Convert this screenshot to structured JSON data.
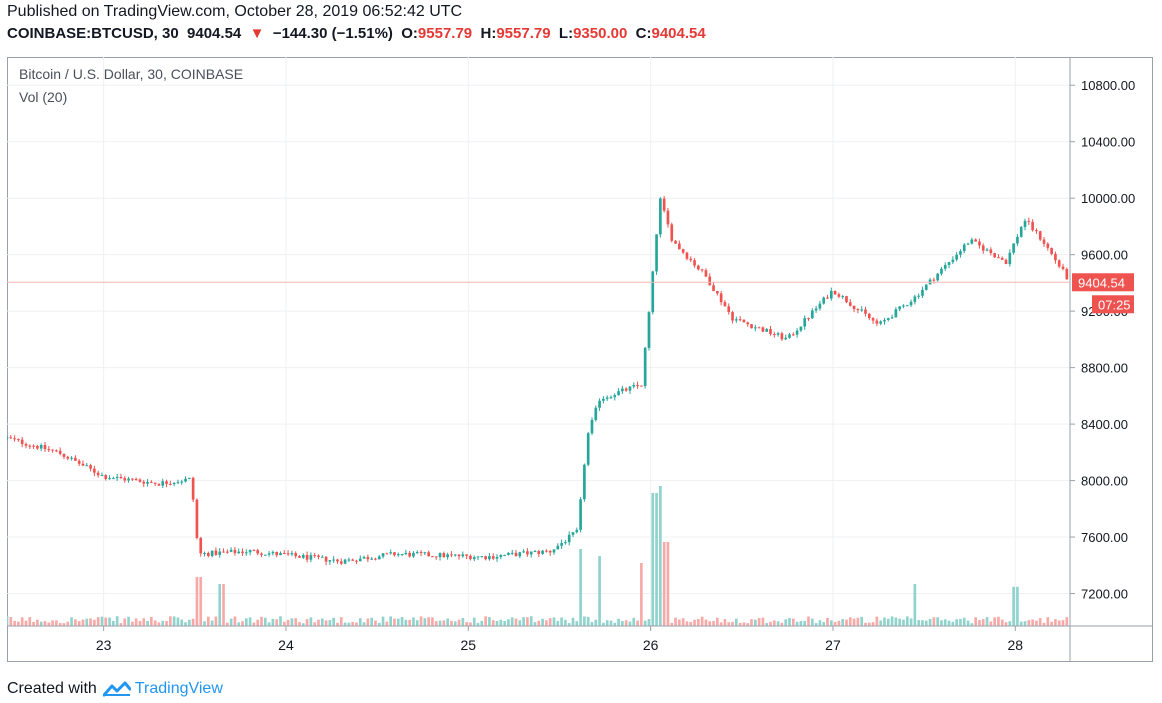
{
  "header": {
    "published": "Published on TradingView.com, October 28, 2019 06:52:42 UTC",
    "symbol": "COINBASE:BTCUSD, 30",
    "last": "9404.54",
    "arrow": "▼",
    "change": "−144.30 (−1.51%)",
    "o_label": "O:",
    "o_value": "9557.79",
    "h_label": "H:",
    "h_value": "9557.79",
    "l_label": "L:",
    "l_value": "9350.00",
    "c_label": "C:",
    "c_value": "9404.54"
  },
  "legend": {
    "title": "Bitcoin / U.S. Dollar, 30, COINBASE",
    "volume": "Vol (20)"
  },
  "price_label": "9404.54",
  "countdown_label": "07:25",
  "footer": {
    "created": "Created with",
    "brand": "TradingView",
    "logo": "tradingview-logo-icon"
  },
  "colors": {
    "up": "#26a69a",
    "down": "#ef5350",
    "vol_up": "#8fd3cc",
    "vol_down": "#f7a9a7",
    "grid": "#eef0f3",
    "axis": "#9aa0ab",
    "price_line": "#f5b8b3"
  },
  "chart_data": {
    "type": "candlestick",
    "title": "Bitcoin / U.S. Dollar, 30, COINBASE",
    "interval": "30",
    "xlabel": "",
    "ylabel": "",
    "x_ticks": [
      "23",
      "24",
      "25",
      "26",
      "27",
      "28"
    ],
    "x_tick_positions": [
      23,
      24,
      25,
      26,
      27,
      28
    ],
    "y_ticks": [
      7200,
      7600,
      8000,
      8400,
      8800,
      9200,
      9600,
      10000,
      10400,
      10800
    ],
    "y_tick_labels": [
      "7200.00",
      "7600.00",
      "8000.00",
      "8400.00",
      "8800.00",
      "9200.00",
      "9600.00",
      "10000.00",
      "10400.00",
      "10800.00"
    ],
    "ylim": [
      6970,
      11000
    ],
    "xlim": [
      22.47,
      28.3
    ],
    "last_price": 9404.54,
    "grid": true,
    "legend": "top-left",
    "key_points": [
      {
        "t": 22.47,
        "price": 8300
      },
      {
        "t": 22.75,
        "price": 8200
      },
      {
        "t": 23.0,
        "price": 8030
      },
      {
        "t": 23.3,
        "price": 7980
      },
      {
        "t": 23.48,
        "price": 8010
      },
      {
        "t": 23.52,
        "price": 7480
      },
      {
        "t": 23.8,
        "price": 7500
      },
      {
        "t": 24.3,
        "price": 7430
      },
      {
        "t": 24.6,
        "price": 7480
      },
      {
        "t": 25.1,
        "price": 7460
      },
      {
        "t": 25.45,
        "price": 7500
      },
      {
        "t": 25.6,
        "price": 7640
      },
      {
        "t": 25.65,
        "price": 8300
      },
      {
        "t": 25.72,
        "price": 8580
      },
      {
        "t": 25.95,
        "price": 8680
      },
      {
        "t": 26.0,
        "price": 9300
      },
      {
        "t": 26.05,
        "price": 10000
      },
      {
        "t": 26.12,
        "price": 9700
      },
      {
        "t": 26.3,
        "price": 9450
      },
      {
        "t": 26.45,
        "price": 9150
      },
      {
        "t": 26.75,
        "price": 9000
      },
      {
        "t": 27.0,
        "price": 9350
      },
      {
        "t": 27.25,
        "price": 9100
      },
      {
        "t": 27.45,
        "price": 9300
      },
      {
        "t": 27.75,
        "price": 9700
      },
      {
        "t": 27.95,
        "price": 9550
      },
      {
        "t": 28.05,
        "price": 9850
      },
      {
        "t": 28.15,
        "price": 9700
      },
      {
        "t": 28.3,
        "price": 9404.54
      }
    ],
    "volume_spikes": [
      {
        "t": 23.52,
        "v": 0.35,
        "dir": "down"
      },
      {
        "t": 23.65,
        "v": 0.3,
        "dir": "up"
      },
      {
        "t": 25.62,
        "v": 0.55,
        "dir": "up"
      },
      {
        "t": 25.72,
        "v": 0.5,
        "dir": "up"
      },
      {
        "t": 25.95,
        "v": 0.45,
        "dir": "up"
      },
      {
        "t": 26.02,
        "v": 0.95,
        "dir": "up"
      },
      {
        "t": 26.05,
        "v": 1.0,
        "dir": "up"
      },
      {
        "t": 26.08,
        "v": 0.6,
        "dir": "down"
      },
      {
        "t": 27.45,
        "v": 0.3,
        "dir": "up"
      },
      {
        "t": 28.0,
        "v": 0.28,
        "dir": "up"
      }
    ]
  }
}
